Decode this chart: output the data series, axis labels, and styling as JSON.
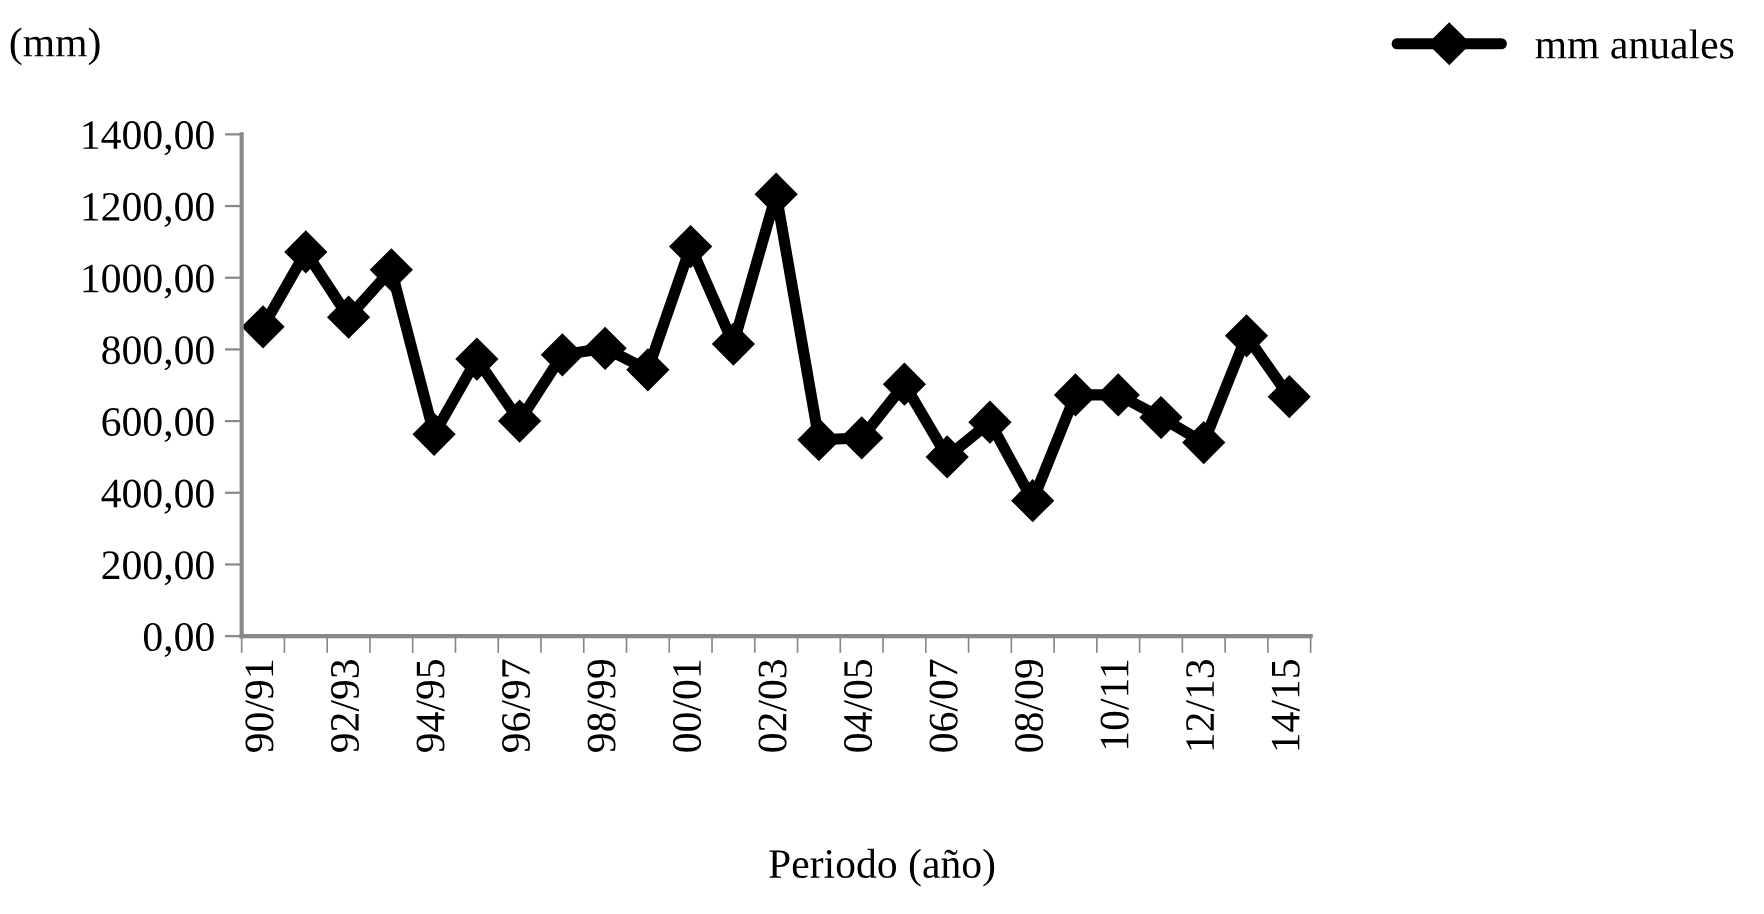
{
  "chart_data": {
    "type": "line",
    "ylabel": "(mm)",
    "xlabel": "Periodo (año)",
    "categories": [
      "90/91",
      null,
      "92/93",
      null,
      "94/95",
      null,
      "96/97",
      null,
      "98/99",
      null,
      "00/01",
      null,
      "02/03",
      null,
      "04/05",
      null,
      "06/07",
      null,
      "08/09",
      null,
      "10/11",
      null,
      "12/13",
      null,
      "14/15"
    ],
    "series": [
      {
        "name": "mm anuales",
        "color": "#000000",
        "values": [
          863,
          1072,
          890,
          1022,
          563,
          773,
          600,
          785,
          803,
          743,
          1087,
          815,
          1233,
          548,
          553,
          703,
          500,
          597,
          378,
          673,
          673,
          610,
          540,
          838,
          668
        ]
      }
    ],
    "ylim": [
      0,
      1400
    ],
    "yticks": [
      {
        "value": 0,
        "label": "0,00"
      },
      {
        "value": 200,
        "label": "200,00"
      },
      {
        "value": 400,
        "label": "400,00"
      },
      {
        "value": 600,
        "label": "600,00"
      },
      {
        "value": 800,
        "label": "800,00"
      },
      {
        "value": 1000,
        "label": "1000,00"
      },
      {
        "value": 1200,
        "label": "1200,00"
      },
      {
        "value": 1400,
        "label": "1400,00"
      }
    ],
    "grid": false,
    "legend": "top right",
    "marker": "diamond",
    "line_style": "solid"
  }
}
